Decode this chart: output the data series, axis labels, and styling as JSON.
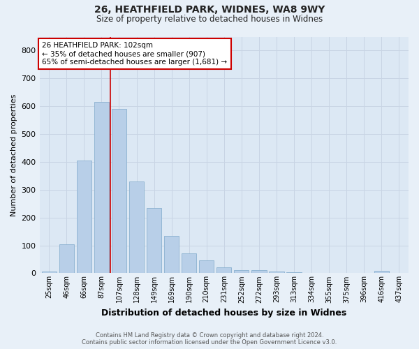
{
  "title_line1": "26, HEATHFIELD PARK, WIDNES, WA8 9WY",
  "title_line2": "Size of property relative to detached houses in Widnes",
  "xlabel": "Distribution of detached houses by size in Widnes",
  "ylabel": "Number of detached properties",
  "categories": [
    "25sqm",
    "46sqm",
    "66sqm",
    "87sqm",
    "107sqm",
    "128sqm",
    "149sqm",
    "169sqm",
    "190sqm",
    "210sqm",
    "231sqm",
    "252sqm",
    "272sqm",
    "293sqm",
    "313sqm",
    "334sqm",
    "355sqm",
    "375sqm",
    "396sqm",
    "416sqm",
    "437sqm"
  ],
  "values": [
    5,
    105,
    405,
    615,
    590,
    330,
    235,
    135,
    70,
    45,
    20,
    12,
    12,
    5,
    3,
    1,
    1,
    1,
    1,
    8,
    1
  ],
  "bar_color": "#b8cfe8",
  "bar_edge_color": "#8ab0d0",
  "annotation_text_line1": "26 HEATHFIELD PARK: 102sqm",
  "annotation_text_line2": "← 35% of detached houses are smaller (907)",
  "annotation_text_line3": "65% of semi-detached houses are larger (1,681) →",
  "annotation_box_color": "#ffffff",
  "annotation_box_edge_color": "#cc0000",
  "vline_color": "#cc0000",
  "vline_x": 3.5,
  "ylim": [
    0,
    850
  ],
  "yticks": [
    0,
    100,
    200,
    300,
    400,
    500,
    600,
    700,
    800
  ],
  "grid_color": "#c8d4e4",
  "background_color": "#dce8f4",
  "fig_background_color": "#e8f0f8",
  "footer_line1": "Contains HM Land Registry data © Crown copyright and database right 2024.",
  "footer_line2": "Contains public sector information licensed under the Open Government Licence v3.0."
}
